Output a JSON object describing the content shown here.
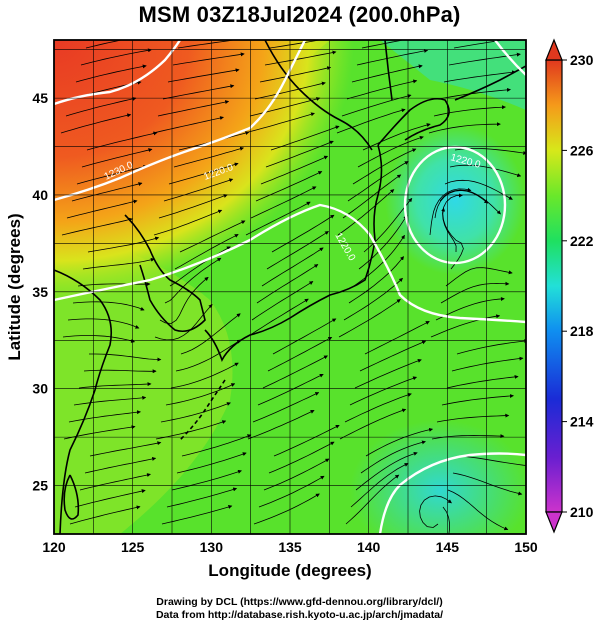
{
  "title": "MSM 03Z18Jul2024 (200.0hPa)",
  "credits": {
    "line1": "Drawing by DCL (https://www.gfd-dennou.org/library/dcl/)",
    "line2": "Data from http://database.rish.kyoto-u.ac.jp/arch/jmadata/"
  },
  "map": {
    "xlabel": "Longitude (degrees)",
    "ylabel": "Latitude  (degrees)",
    "lon_range": [
      120,
      150
    ],
    "lat_range": [
      22.5,
      48
    ],
    "lon_ticks": [
      "120",
      "125",
      "130",
      "135",
      "140",
      "145",
      "150"
    ],
    "lat_ticks": [
      "25",
      "30",
      "35",
      "40",
      "45"
    ],
    "contour_labels": [
      "1230.0",
      "1230.0",
      "1220.0",
      "1220.0",
      "1220.0",
      "1220.0",
      "1220.0"
    ]
  },
  "colorbar": {
    "min": 210,
    "max": 230,
    "labels": [
      "230",
      "226",
      "222",
      "218",
      "214",
      "210"
    ],
    "colors": [
      "#cc33cc",
      "#7a1fc9",
      "#1a2bd6",
      "#0f7ef0",
      "#22d8e8",
      "#1fe07a",
      "#22ee22",
      "#b7ea1c",
      "#eadc1a",
      "#f58a1a",
      "#e4401e"
    ]
  }
}
